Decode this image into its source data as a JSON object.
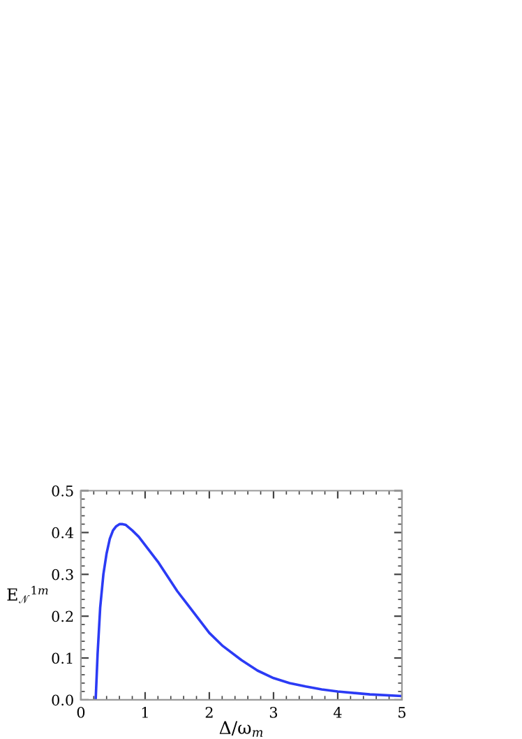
{
  "chart_data": {
    "type": "line",
    "xlabel": "Δ/ω$_{m}$",
    "ylabel": "E$_{𝒩}$$^{1m}$",
    "xlim": [
      0,
      5
    ],
    "ylim": [
      0,
      0.5
    ],
    "xticks": [
      0,
      1,
      2,
      3,
      4,
      5
    ],
    "yticks": [
      {
        "value": 0,
        "label": "0.0"
      },
      0.1,
      0.2,
      0.3,
      0.4,
      0.5
    ],
    "grid": false,
    "legend": false,
    "marker": "none",
    "line_style": "solid",
    "series": [
      {
        "color": "#2b3bf5",
        "x": [
          0.23,
          0.26,
          0.3,
          0.35,
          0.4,
          0.45,
          0.5,
          0.55,
          0.6,
          0.65,
          0.7,
          0.8,
          0.9,
          1.0,
          1.1,
          1.2,
          1.35,
          1.5,
          1.65,
          1.8,
          2.0,
          2.2,
          2.5,
          2.75,
          3.0,
          3.25,
          3.5,
          3.75,
          4.0,
          4.5,
          5.0
        ],
        "values": [
          0.0,
          0.11,
          0.22,
          0.3,
          0.35,
          0.385,
          0.405,
          0.415,
          0.42,
          0.42,
          0.418,
          0.405,
          0.39,
          0.37,
          0.35,
          0.33,
          0.295,
          0.26,
          0.23,
          0.2,
          0.16,
          0.13,
          0.095,
          0.07,
          0.052,
          0.04,
          0.032,
          0.025,
          0.02,
          0.013,
          0.009
        ]
      }
    ]
  }
}
